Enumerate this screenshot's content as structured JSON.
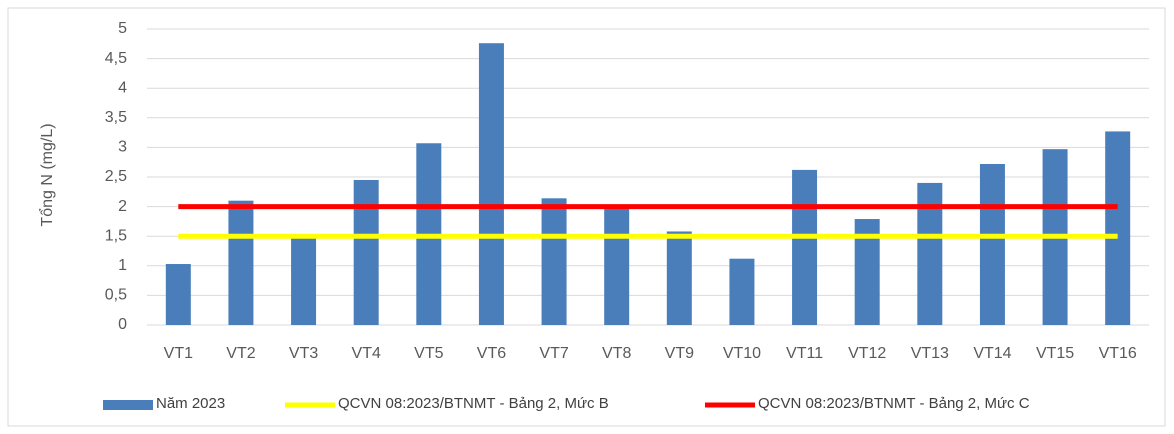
{
  "chart_data": {
    "type": "bar",
    "y_label": "Tổng N (mg/L)",
    "categories": [
      "VT1",
      "VT2",
      "VT3",
      "VT4",
      "VT5",
      "VT6",
      "VT7",
      "VT8",
      "VT9",
      "VT10",
      "VT11",
      "VT12",
      "VT13",
      "VT14",
      "VT15",
      "VT16"
    ],
    "series": [
      {
        "name": "Năm 2023",
        "type": "bar",
        "color": "#4a7ebb",
        "values": [
          1.03,
          2.1,
          1.5,
          2.45,
          3.07,
          4.76,
          2.14,
          2.0,
          1.58,
          1.12,
          2.62,
          1.79,
          2.4,
          2.72,
          2.97,
          3.27
        ]
      },
      {
        "name": "QCVN 08:2023/BTNMT - Bảng 2, Mức B",
        "type": "line",
        "color": "#ffff00",
        "values": [
          1.5,
          1.5,
          1.5,
          1.5,
          1.5,
          1.5,
          1.5,
          1.5,
          1.5,
          1.5,
          1.5,
          1.5,
          1.5,
          1.5,
          1.5,
          1.5
        ]
      },
      {
        "name": "QCVN 08:2023/BTNMT - Bảng 2, Mức C",
        "type": "line",
        "color": "#ff0000",
        "values": [
          2,
          2,
          2,
          2,
          2,
          2,
          2,
          2,
          2,
          2,
          2,
          2,
          2,
          2,
          2,
          2
        ]
      }
    ],
    "ylim": [
      0,
      5
    ],
    "yticks": [
      0,
      {
        "value": 0.5,
        "label": "0,5"
      },
      1,
      {
        "value": 1.5,
        "label": "1,5"
      },
      2,
      {
        "value": 2.5,
        "label": "2,5"
      },
      3,
      {
        "value": 3.5,
        "label": "3,5"
      },
      4,
      {
        "value": 4.5,
        "label": "4,5"
      },
      5
    ],
    "grid": true,
    "legend": "bottom"
  }
}
